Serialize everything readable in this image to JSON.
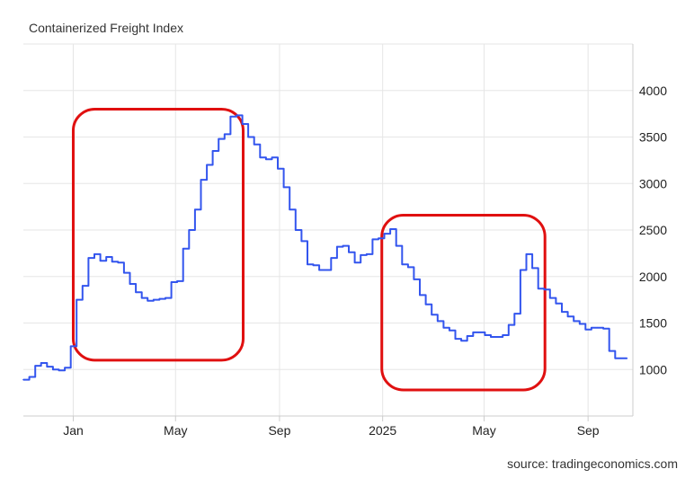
{
  "chart_data": {
    "type": "line",
    "title": "Containerized Freight Index",
    "source": "source: tradingeconomics.com",
    "xlabel": "",
    "ylabel": "",
    "ylim": [
      500,
      4500
    ],
    "xlim": [
      "2023-11-03",
      "2025-10-24"
    ],
    "y_ticks": [
      1000,
      1500,
      2000,
      2500,
      3000,
      3500,
      4000
    ],
    "x_ticks": [
      {
        "label": "Jan",
        "date": "2024-01-01"
      },
      {
        "label": "May",
        "date": "2024-05-01"
      },
      {
        "label": "Sep",
        "date": "2024-09-01"
      },
      {
        "label": "2025",
        "date": "2025-01-01"
      },
      {
        "label": "May",
        "date": "2025-05-01"
      },
      {
        "label": "Sep",
        "date": "2025-09-01"
      }
    ],
    "grid": true,
    "colors": {
      "series": "#3355ee",
      "highlight": "#e01010"
    },
    "series": [
      {
        "points": [
          [
            "2023-11-03",
            890
          ],
          [
            "2023-11-10",
            920
          ],
          [
            "2023-11-17",
            1040
          ],
          [
            "2023-11-24",
            1070
          ],
          [
            "2023-12-01",
            1030
          ],
          [
            "2023-12-08",
            1000
          ],
          [
            "2023-12-15",
            990
          ],
          [
            "2023-12-22",
            1020
          ],
          [
            "2023-12-29",
            1250
          ],
          [
            "2024-01-05",
            1750
          ],
          [
            "2024-01-12",
            1900
          ],
          [
            "2024-01-19",
            2200
          ],
          [
            "2024-01-26",
            2240
          ],
          [
            "2024-02-02",
            2170
          ],
          [
            "2024-02-09",
            2210
          ],
          [
            "2024-02-16",
            2160
          ],
          [
            "2024-02-23",
            2150
          ],
          [
            "2024-03-01",
            2040
          ],
          [
            "2024-03-08",
            1920
          ],
          [
            "2024-03-15",
            1830
          ],
          [
            "2024-03-22",
            1770
          ],
          [
            "2024-03-29",
            1740
          ],
          [
            "2024-04-05",
            1750
          ],
          [
            "2024-04-12",
            1760
          ],
          [
            "2024-04-19",
            1770
          ],
          [
            "2024-04-26",
            1940
          ],
          [
            "2024-05-03",
            1950
          ],
          [
            "2024-05-10",
            2300
          ],
          [
            "2024-05-17",
            2500
          ],
          [
            "2024-05-24",
            2720
          ],
          [
            "2024-05-31",
            3040
          ],
          [
            "2024-06-07",
            3200
          ],
          [
            "2024-06-14",
            3350
          ],
          [
            "2024-06-21",
            3480
          ],
          [
            "2024-06-28",
            3530
          ],
          [
            "2024-07-05",
            3720
          ],
          [
            "2024-07-12",
            3733
          ],
          [
            "2024-07-19",
            3640
          ],
          [
            "2024-07-26",
            3500
          ],
          [
            "2024-08-02",
            3420
          ],
          [
            "2024-08-09",
            3280
          ],
          [
            "2024-08-16",
            3260
          ],
          [
            "2024-08-23",
            3280
          ],
          [
            "2024-08-30",
            3160
          ],
          [
            "2024-09-06",
            2960
          ],
          [
            "2024-09-13",
            2720
          ],
          [
            "2024-09-20",
            2500
          ],
          [
            "2024-09-27",
            2380
          ],
          [
            "2024-10-04",
            2130
          ],
          [
            "2024-10-11",
            2120
          ],
          [
            "2024-10-18",
            2070
          ],
          [
            "2024-10-25",
            2070
          ],
          [
            "2024-11-01",
            2200
          ],
          [
            "2024-11-08",
            2320
          ],
          [
            "2024-11-15",
            2330
          ],
          [
            "2024-11-22",
            2260
          ],
          [
            "2024-11-29",
            2150
          ],
          [
            "2024-12-06",
            2230
          ],
          [
            "2024-12-13",
            2240
          ],
          [
            "2024-12-20",
            2400
          ],
          [
            "2024-12-27",
            2410
          ],
          [
            "2025-01-03",
            2460
          ],
          [
            "2025-01-10",
            2510
          ],
          [
            "2025-01-17",
            2330
          ],
          [
            "2025-01-24",
            2130
          ],
          [
            "2025-01-31",
            2100
          ],
          [
            "2025-02-07",
            1970
          ],
          [
            "2025-02-14",
            1800
          ],
          [
            "2025-02-21",
            1700
          ],
          [
            "2025-02-28",
            1590
          ],
          [
            "2025-03-07",
            1520
          ],
          [
            "2025-03-14",
            1450
          ],
          [
            "2025-03-21",
            1420
          ],
          [
            "2025-03-28",
            1330
          ],
          [
            "2025-04-04",
            1310
          ],
          [
            "2025-04-11",
            1360
          ],
          [
            "2025-04-18",
            1400
          ],
          [
            "2025-04-25",
            1400
          ],
          [
            "2025-05-02",
            1370
          ],
          [
            "2025-05-09",
            1350
          ],
          [
            "2025-05-16",
            1350
          ],
          [
            "2025-05-23",
            1370
          ],
          [
            "2025-05-30",
            1480
          ],
          [
            "2025-06-06",
            1600
          ],
          [
            "2025-06-13",
            2070
          ],
          [
            "2025-06-20",
            2240
          ],
          [
            "2025-06-27",
            2090
          ],
          [
            "2025-07-04",
            1870
          ],
          [
            "2025-07-11",
            1860
          ],
          [
            "2025-07-18",
            1770
          ],
          [
            "2025-07-25",
            1710
          ],
          [
            "2025-08-01",
            1620
          ],
          [
            "2025-08-08",
            1570
          ],
          [
            "2025-08-15",
            1520
          ],
          [
            "2025-08-22",
            1490
          ],
          [
            "2025-08-29",
            1430
          ],
          [
            "2025-09-05",
            1450
          ],
          [
            "2025-09-12",
            1450
          ],
          [
            "2025-09-19",
            1440
          ],
          [
            "2025-09-26",
            1200
          ],
          [
            "2025-10-03",
            1120
          ],
          [
            "2025-10-10",
            1120
          ],
          [
            "2025-10-17",
            1120
          ]
        ]
      }
    ],
    "highlights": [
      {
        "from": "2024-01-01",
        "to": "2024-07-20",
        "y_from": 1100,
        "y_to": 3800
      },
      {
        "from": "2024-12-31",
        "to": "2025-07-12",
        "y_from": 780,
        "y_to": 2660
      }
    ]
  }
}
